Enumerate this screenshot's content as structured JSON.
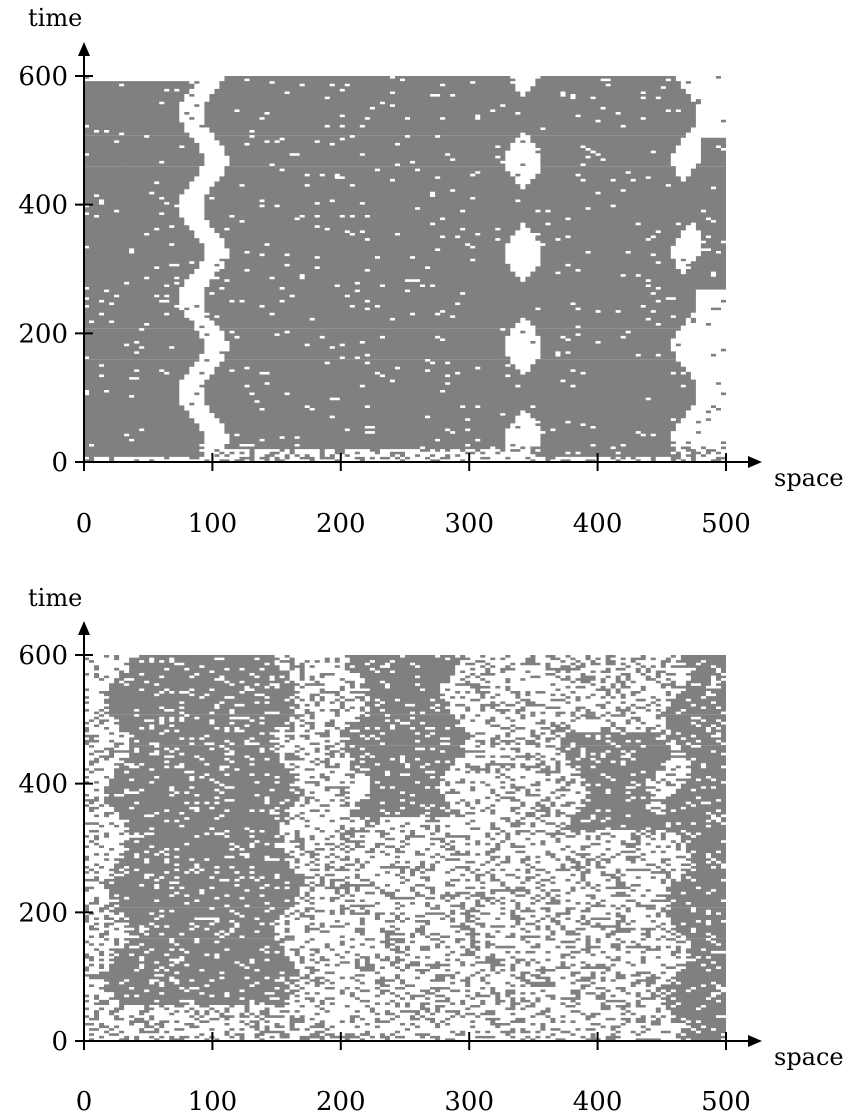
{
  "chart_data": [
    {
      "type": "heatmap",
      "description_of_marks": "space-time occupancy pattern (gray = occupied)",
      "xlabel": "space",
      "ylabel": "time",
      "xlim": [
        0,
        500
      ],
      "ylim": [
        0,
        600
      ],
      "x_ticks": [
        0,
        100,
        200,
        300,
        400,
        500
      ],
      "y_ticks": [
        0,
        200,
        400,
        600
      ],
      "x_tick_labels": [
        "0",
        "100",
        "200",
        "300",
        "400",
        "500"
      ],
      "y_tick_labels": [
        "0",
        "200",
        "400",
        "600"
      ],
      "fill_color": "#808080",
      "pattern": "coarse",
      "clusters": [
        {
          "x_range": [
            0,
            75
          ],
          "t_range": [
            10,
            590
          ]
        },
        {
          "x_range": [
            110,
            330
          ],
          "t_range": [
            20,
            600
          ]
        },
        {
          "x_range": [
            355,
            460
          ],
          "t_range": [
            10,
            600
          ]
        },
        {
          "x_range": [
            480,
            500
          ],
          "t_range": [
            270,
            505
          ]
        }
      ]
    },
    {
      "type": "heatmap",
      "xlabel": "space",
      "ylabel": "time",
      "xlim": [
        0,
        500
      ],
      "ylim": [
        0,
        600
      ],
      "x_ticks": [
        0,
        100,
        200,
        300,
        400,
        500
      ],
      "y_ticks": [
        0,
        200,
        400,
        600
      ],
      "x_tick_labels": [
        "0",
        "100",
        "200",
        "300",
        "400",
        "500"
      ],
      "y_tick_labels": [
        "0",
        "200",
        "400",
        "600"
      ],
      "fill_color": "#808080",
      "pattern": "fine",
      "clusters": [
        {
          "x_range": [
            35,
            150
          ],
          "t_range": [
            55,
            600
          ]
        },
        {
          "x_range": [
            220,
            280
          ],
          "t_range": [
            350,
            600
          ]
        },
        {
          "x_range": [
            390,
            440
          ],
          "t_range": [
            330,
            480
          ]
        },
        {
          "x_range": [
            470,
            500
          ],
          "t_range": [
            0,
            600
          ]
        }
      ]
    }
  ]
}
